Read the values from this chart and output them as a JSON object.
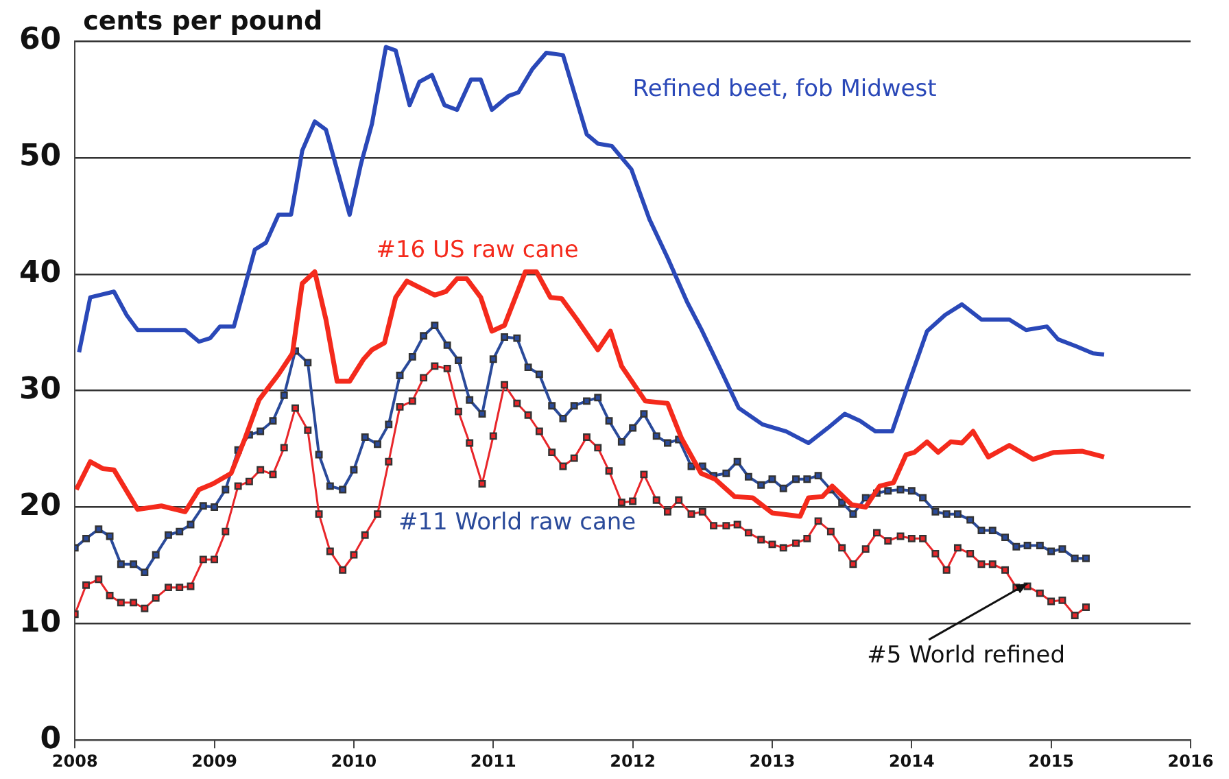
{
  "chart_data": {
    "type": "line",
    "ylabel": "cents per pound",
    "xlim": [
      2008,
      2016
    ],
    "xticks": [
      2008,
      2009,
      2010,
      2011,
      2012,
      2013,
      2014,
      2015,
      2016
    ],
    "ylim": [
      0,
      60
    ],
    "yticks": [
      0,
      10,
      20,
      30,
      40,
      50,
      60
    ],
    "grid": "y",
    "legend": false,
    "x": [
      2008,
      2008.08,
      2008.17,
      2008.25,
      2008.33,
      2008.42,
      2008.5,
      2008.58,
      2008.67,
      2008.75,
      2008.83,
      2008.92,
      2009,
      2009.08,
      2009.17,
      2009.25,
      2009.33,
      2009.42,
      2009.5,
      2009.58,
      2009.67,
      2009.75,
      2009.83,
      2009.92,
      2010,
      2010.08,
      2010.17,
      2010.25,
      2010.33,
      2010.42,
      2010.5,
      2010.58,
      2010.67,
      2010.75,
      2010.83,
      2010.92,
      2011,
      2011.08,
      2011.17,
      2011.25,
      2011.33,
      2011.42,
      2011.5,
      2011.58,
      2011.67,
      2011.75,
      2011.83,
      2011.92,
      2012,
      2012.08,
      2012.17,
      2012.25,
      2012.33,
      2012.42,
      2012.5,
      2012.58,
      2012.67,
      2012.75,
      2012.83,
      2012.92,
      2013,
      2013.08,
      2013.17,
      2013.25,
      2013.33,
      2013.42,
      2013.5,
      2013.58,
      2013.67,
      2013.75,
      2013.83,
      2013.92,
      2014,
      2014.08,
      2014.17,
      2014.25,
      2014.33,
      2014.42,
      2014.5,
      2014.58,
      2014.67,
      2014.75,
      2014.83,
      2014.92,
      2015,
      2015.08,
      2015.17,
      2015.25
    ],
    "series": [
      {
        "name": "Refined beet, fob Midwest",
        "color": "#2a48b8",
        "marker": "none",
        "x": [
          2008.03,
          2008.11,
          2008.28,
          2008.37,
          2008.45,
          2008.79,
          2008.89,
          2008.97,
          2009.04,
          2009.14,
          2009.29,
          2009.37,
          2009.46,
          2009.55,
          2009.63,
          2009.72,
          2009.8,
          2009.97,
          2010.05,
          2010.13,
          2010.23,
          2010.3,
          2010.4,
          2010.47,
          2010.56,
          2010.65,
          2010.74,
          2010.84,
          2010.91,
          2010.99,
          2011.11,
          2011.18,
          2011.28,
          2011.38,
          2011.5,
          2011.67,
          2011.75,
          2011.85,
          2011.99,
          2012.12,
          2012.25,
          2012.39,
          2012.49,
          2012.63,
          2012.76,
          2012.93,
          2013.1,
          2013.26,
          2013.4,
          2013.52,
          2013.63,
          2013.74,
          2013.86,
          2013.96,
          2014.11,
          2014.24,
          2014.36,
          2014.5,
          2014.7,
          2014.82,
          2014.97,
          2015.05,
          2015.18,
          2015.3,
          2015.38
        ],
        "values": [
          33.3,
          38,
          38.5,
          36.5,
          35.2,
          35.2,
          34.2,
          34.5,
          35.5,
          35.5,
          42.1,
          42.7,
          45.1,
          45.1,
          50.6,
          53.1,
          52.4,
          45.1,
          49.4,
          52.9,
          59.5,
          59.2,
          54.5,
          56.5,
          57.1,
          54.5,
          54.1,
          56.7,
          56.7,
          54.1,
          55.3,
          55.6,
          57.6,
          59,
          58.8,
          52,
          51.2,
          51,
          49,
          44.7,
          41.4,
          37.6,
          35.3,
          31.8,
          28.5,
          27.1,
          26.5,
          25.5,
          26.8,
          28,
          27.4,
          26.5,
          26.5,
          30,
          35.1,
          36.5,
          37.4,
          36.1,
          36.1,
          35.2,
          35.5,
          34.4,
          33.8,
          33.2,
          33.1
        ]
      },
      {
        "name": "#16 US raw cane",
        "color": "#f42a1c",
        "marker": "none",
        "x": [
          2008.01,
          2008.11,
          2008.2,
          2008.28,
          2008.45,
          2008.62,
          2008.79,
          2008.89,
          2008.99,
          2009.12,
          2009.22,
          2009.32,
          2009.46,
          2009.56,
          2009.63,
          2009.72,
          2009.8,
          2009.88,
          2009.97,
          2010.07,
          2010.13,
          2010.22,
          2010.3,
          2010.38,
          2010.58,
          2010.66,
          2010.74,
          2010.81,
          2010.91,
          2010.99,
          2011.08,
          2011.23,
          2011.31,
          2011.41,
          2011.49,
          2011.6,
          2011.75,
          2011.84,
          2011.92,
          2012.09,
          2012.25,
          2012.35,
          2012.49,
          2012.59,
          2012.73,
          2012.86,
          2013,
          2013.2,
          2013.26,
          2013.36,
          2013.43,
          2013.57,
          2013.67,
          2013.77,
          2013.87,
          2013.96,
          2014.02,
          2014.11,
          2014.19,
          2014.28,
          2014.36,
          2014.44,
          2014.55,
          2014.7,
          2014.87,
          2015.02,
          2015.22,
          2015.38
        ],
        "values": [
          21.5,
          23.9,
          23.3,
          23.2,
          19.8,
          20.1,
          19.6,
          21.5,
          22,
          22.9,
          25.9,
          29.2,
          31.4,
          33.2,
          39.2,
          40.2,
          36.1,
          30.8,
          30.8,
          32.7,
          33.5,
          34.1,
          38,
          39.4,
          38.2,
          38.5,
          39.6,
          39.6,
          38,
          35.1,
          35.6,
          40.2,
          40.2,
          38,
          37.9,
          36.1,
          33.5,
          35.1,
          32.1,
          29.1,
          28.9,
          25.9,
          22.9,
          22.4,
          20.9,
          20.8,
          19.5,
          19.2,
          20.8,
          20.9,
          21.8,
          20.2,
          20,
          21.8,
          22.1,
          24.5,
          24.7,
          25.6,
          24.7,
          25.6,
          25.5,
          26.5,
          24.3,
          25.3,
          24.1,
          24.7,
          24.8,
          24.3
        ]
      },
      {
        "name": "#11 World raw cane",
        "color": "#2a4a9a",
        "marker": "square",
        "values": [
          16.5,
          17.3,
          18.1,
          17.5,
          15.1,
          15.1,
          14.4,
          15.9,
          17.6,
          17.9,
          18.5,
          20.1,
          20,
          21.5,
          24.9,
          26.2,
          26.5,
          27.4,
          29.6,
          33.4,
          32.4,
          24.5,
          21.8,
          21.5,
          23.2,
          26,
          25.4,
          27.1,
          31.3,
          32.9,
          34.7,
          35.6,
          33.9,
          32.6,
          29.2,
          28,
          32.7,
          34.6,
          34.5,
          32,
          31.4,
          28.7,
          27.6,
          28.7,
          29.1,
          29.4,
          27.4,
          25.6,
          26.8,
          28,
          26.1,
          25.5,
          25.8,
          23.5,
          23.5,
          22.7,
          22.9,
          23.9,
          22.6,
          21.9,
          22.4,
          21.6,
          22.4,
          22.4,
          22.7,
          21.5,
          20.4,
          19.4,
          20.8,
          21.2,
          21.4,
          21.5,
          21.4,
          20.8,
          19.6,
          19.4,
          19.4,
          18.9,
          18,
          18,
          17.4,
          16.6,
          16.7,
          16.7,
          16.2,
          16.4,
          15.6,
          15.6
        ]
      },
      {
        "name": "#5 World refined",
        "color": "#e8262a",
        "marker": "square",
        "values": [
          10.8,
          13.3,
          13.8,
          12.4,
          11.8,
          11.8,
          11.3,
          12.2,
          13.1,
          13.1,
          13.2,
          15.5,
          15.5,
          17.9,
          21.8,
          22.2,
          23.2,
          22.8,
          25.1,
          28.5,
          26.6,
          19.4,
          16.2,
          14.6,
          15.9,
          17.6,
          19.4,
          23.9,
          28.6,
          29.1,
          31.1,
          32.1,
          31.9,
          28.2,
          25.5,
          22,
          26.1,
          30.5,
          28.9,
          27.9,
          26.5,
          24.7,
          23.5,
          24.2,
          26,
          25.1,
          23.1,
          20.4,
          20.5,
          22.8,
          20.6,
          19.6,
          20.6,
          19.4,
          19.6,
          18.4,
          18.4,
          18.5,
          17.8,
          17.2,
          16.8,
          16.5,
          16.9,
          17.3,
          18.8,
          17.9,
          16.5,
          15.1,
          16.4,
          17.8,
          17.1,
          17.5,
          17.3,
          17.3,
          16,
          14.6,
          16.5,
          16,
          15.1,
          15.1,
          14.6,
          13.1,
          13.2,
          12.6,
          11.9,
          12,
          10.7,
          11.4
        ]
      }
    ]
  }
}
